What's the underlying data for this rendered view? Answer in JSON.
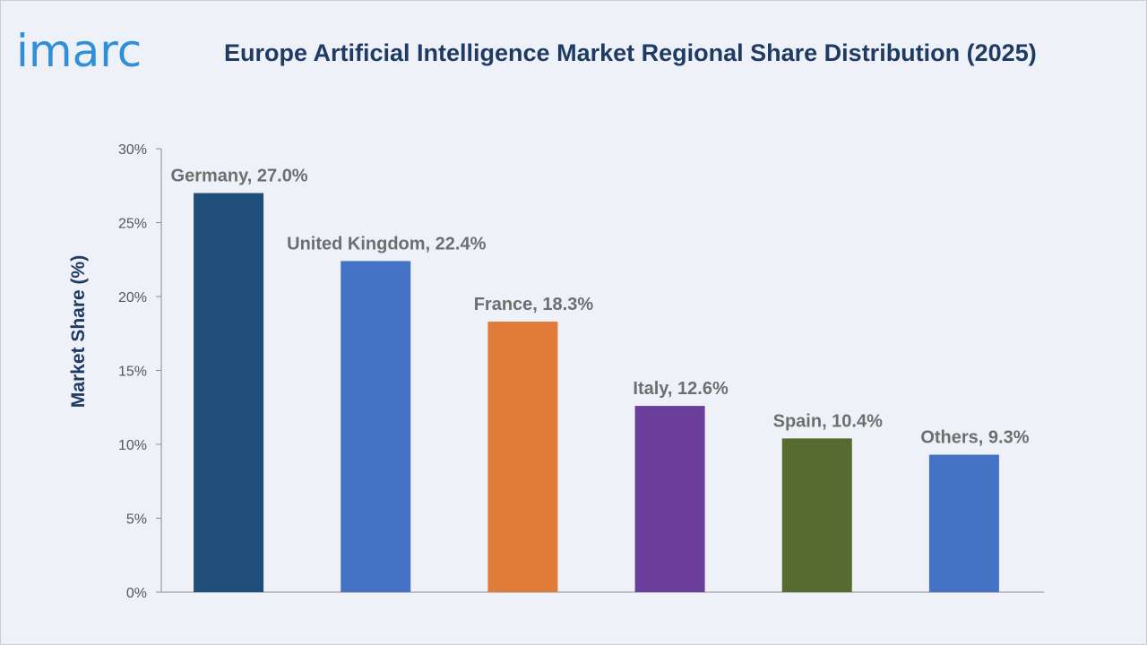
{
  "logo": {
    "text": "imarc",
    "color": "#2f8fd8"
  },
  "chart_data": {
    "type": "bar",
    "title": "Europe Artificial Intelligence Market Regional Share Distribution (2025)",
    "xlabel": "",
    "ylabel": "Market Share (%)",
    "ylim": [
      0,
      30
    ],
    "yticks": [
      0,
      5,
      10,
      15,
      20,
      25,
      30
    ],
    "ytick_labels": [
      "0%",
      "5%",
      "10%",
      "15%",
      "20%",
      "25%",
      "30%"
    ],
    "grid": false,
    "categories": [
      "Germany",
      "United Kingdom",
      "France",
      "Italy",
      "Spain",
      "Others"
    ],
    "values": [
      27.0,
      22.4,
      18.3,
      12.6,
      10.4,
      9.3
    ],
    "data_labels": [
      "Germany, 27.0%",
      "United Kingdom, 22.4%",
      "France, 18.3%",
      "Italy, 12.6%",
      "Spain, 10.4%",
      "Others, 9.3%"
    ],
    "colors": [
      "#1f4e79",
      "#4472c4",
      "#e07b39",
      "#6a3d9a",
      "#556b2f",
      "#4472c4"
    ]
  }
}
